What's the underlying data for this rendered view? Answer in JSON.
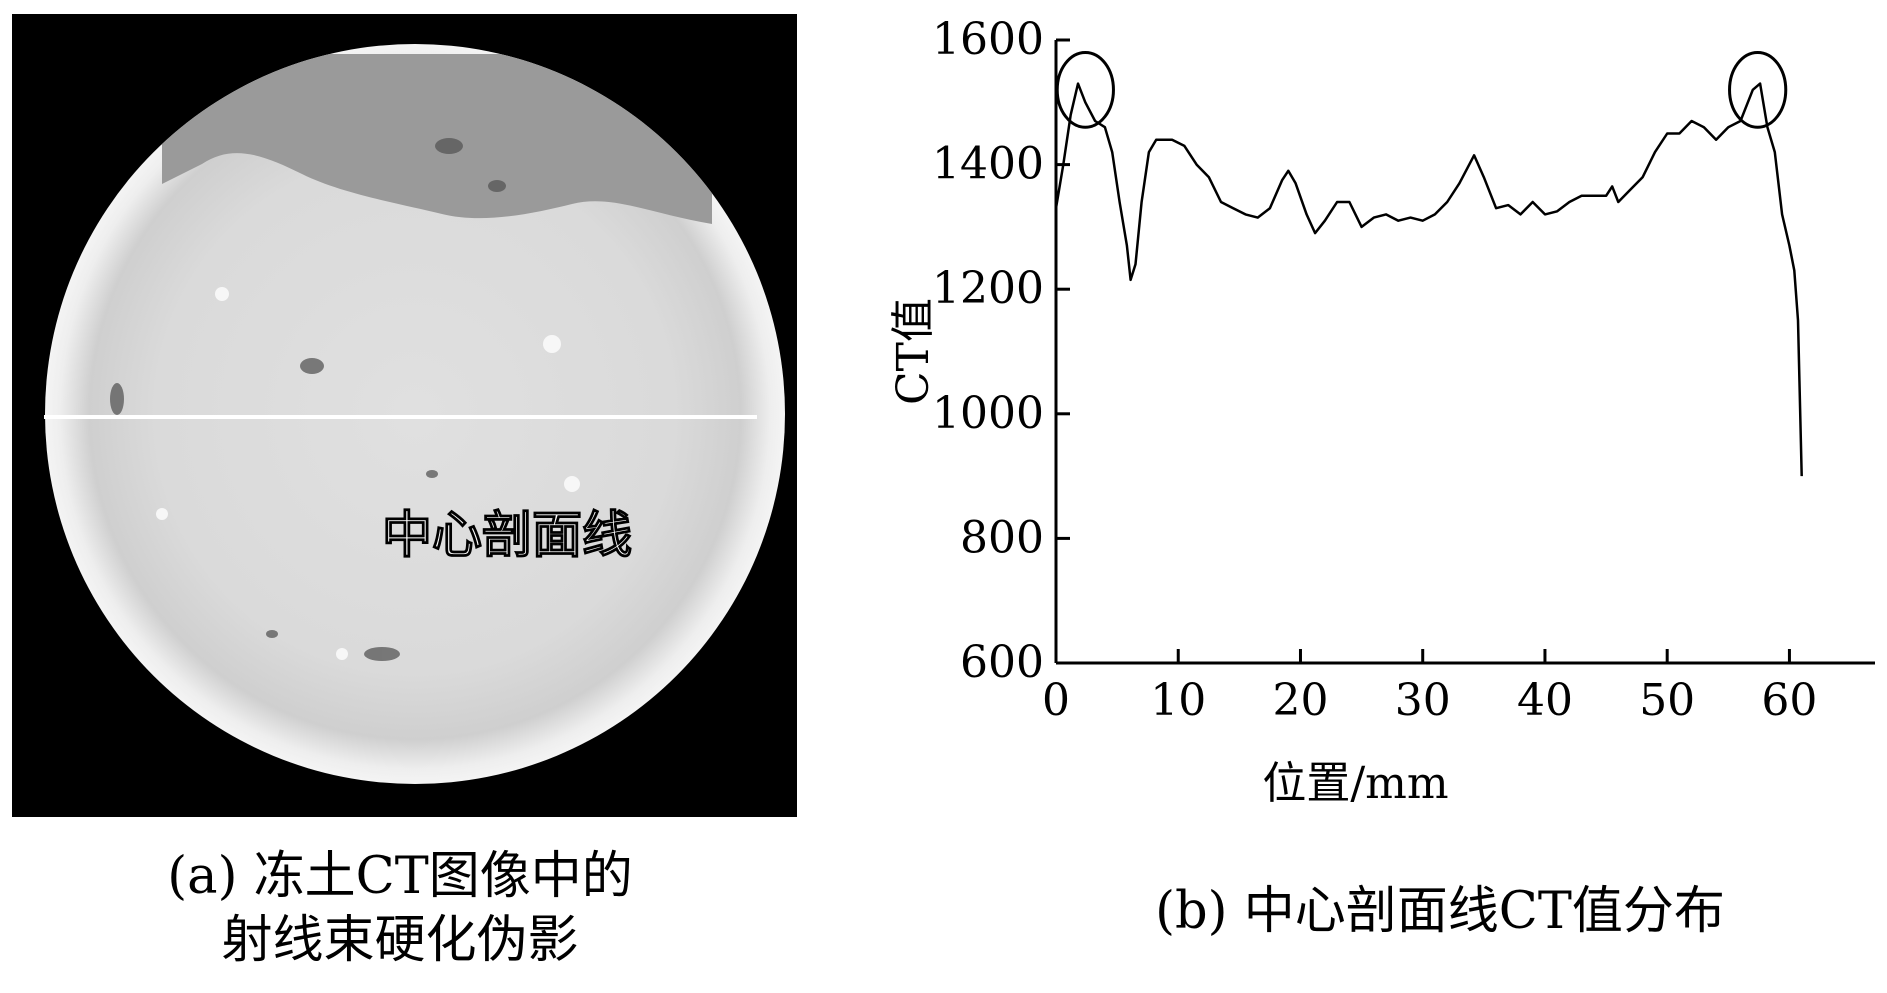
{
  "panel_a": {
    "overlay_label": "中心剖面线",
    "caption_line1": "(a) 冻土CT图像中的",
    "caption_line2": "射线束硬化伪影",
    "colors": {
      "background": "#000000",
      "line": "#ffffff"
    }
  },
  "panel_b": {
    "caption": "(b) 中心剖面线CT值分布"
  },
  "chart_data": {
    "type": "line",
    "title": "",
    "xlabel": "位置/mm",
    "ylabel": "CT值",
    "xlim": [
      0,
      67
    ],
    "ylim": [
      600,
      1600
    ],
    "xticks": [
      0,
      10,
      20,
      30,
      40,
      50,
      60
    ],
    "yticks": [
      600,
      800,
      1000,
      1200,
      1400,
      1600
    ],
    "grid": false,
    "legend": "none",
    "series": [
      {
        "color": "#000000",
        "points": [
          [
            0,
            1330
          ],
          [
            0.6,
            1400
          ],
          [
            1.2,
            1480
          ],
          [
            1.8,
            1530
          ],
          [
            2.4,
            1500
          ],
          [
            3.2,
            1470
          ],
          [
            4.0,
            1460
          ],
          [
            4.6,
            1420
          ],
          [
            5.2,
            1340
          ],
          [
            5.8,
            1270
          ],
          [
            6.1,
            1215
          ],
          [
            6.5,
            1240
          ],
          [
            7.0,
            1340
          ],
          [
            7.6,
            1420
          ],
          [
            8.2,
            1440
          ],
          [
            9.5,
            1440
          ],
          [
            10.5,
            1430
          ],
          [
            11.5,
            1400
          ],
          [
            12.5,
            1380
          ],
          [
            13.5,
            1340
          ],
          [
            14.5,
            1330
          ],
          [
            15.5,
            1320
          ],
          [
            16.5,
            1315
          ],
          [
            17.5,
            1330
          ],
          [
            18.5,
            1375
          ],
          [
            19.0,
            1390
          ],
          [
            19.6,
            1370
          ],
          [
            20.5,
            1320
          ],
          [
            21.2,
            1290
          ],
          [
            22.0,
            1310
          ],
          [
            23.0,
            1340
          ],
          [
            24.0,
            1340
          ],
          [
            25.0,
            1300
          ],
          [
            26.0,
            1315
          ],
          [
            27.0,
            1320
          ],
          [
            28.0,
            1310
          ],
          [
            29.0,
            1315
          ],
          [
            30.0,
            1310
          ],
          [
            31.0,
            1320
          ],
          [
            32.0,
            1340
          ],
          [
            33.0,
            1370
          ],
          [
            34.2,
            1415
          ],
          [
            35.0,
            1380
          ],
          [
            36.0,
            1330
          ],
          [
            37.0,
            1335
          ],
          [
            38.0,
            1320
          ],
          [
            39.0,
            1340
          ],
          [
            40.0,
            1320
          ],
          [
            41.0,
            1325
          ],
          [
            42.0,
            1340
          ],
          [
            43.0,
            1350
          ],
          [
            44.0,
            1350
          ],
          [
            45.0,
            1350
          ],
          [
            45.5,
            1365
          ],
          [
            46.0,
            1340
          ],
          [
            47.0,
            1360
          ],
          [
            48.0,
            1380
          ],
          [
            49.0,
            1420
          ],
          [
            50.0,
            1450
          ],
          [
            51.0,
            1450
          ],
          [
            52.0,
            1470
          ],
          [
            53.0,
            1460
          ],
          [
            54.0,
            1440
          ],
          [
            55.0,
            1460
          ],
          [
            56.0,
            1470
          ],
          [
            57.0,
            1520
          ],
          [
            57.6,
            1530
          ],
          [
            58.2,
            1460
          ],
          [
            58.8,
            1420
          ],
          [
            59.4,
            1320
          ],
          [
            60.0,
            1270
          ],
          [
            60.4,
            1230
          ],
          [
            60.7,
            1150
          ],
          [
            61.0,
            900
          ]
        ]
      }
    ],
    "annotations": [
      {
        "type": "circle",
        "x": 2.4,
        "y": 1520,
        "rx": 2.3,
        "ry": 60
      },
      {
        "type": "circle",
        "x": 57.4,
        "y": 1520,
        "rx": 2.3,
        "ry": 60
      }
    ]
  }
}
